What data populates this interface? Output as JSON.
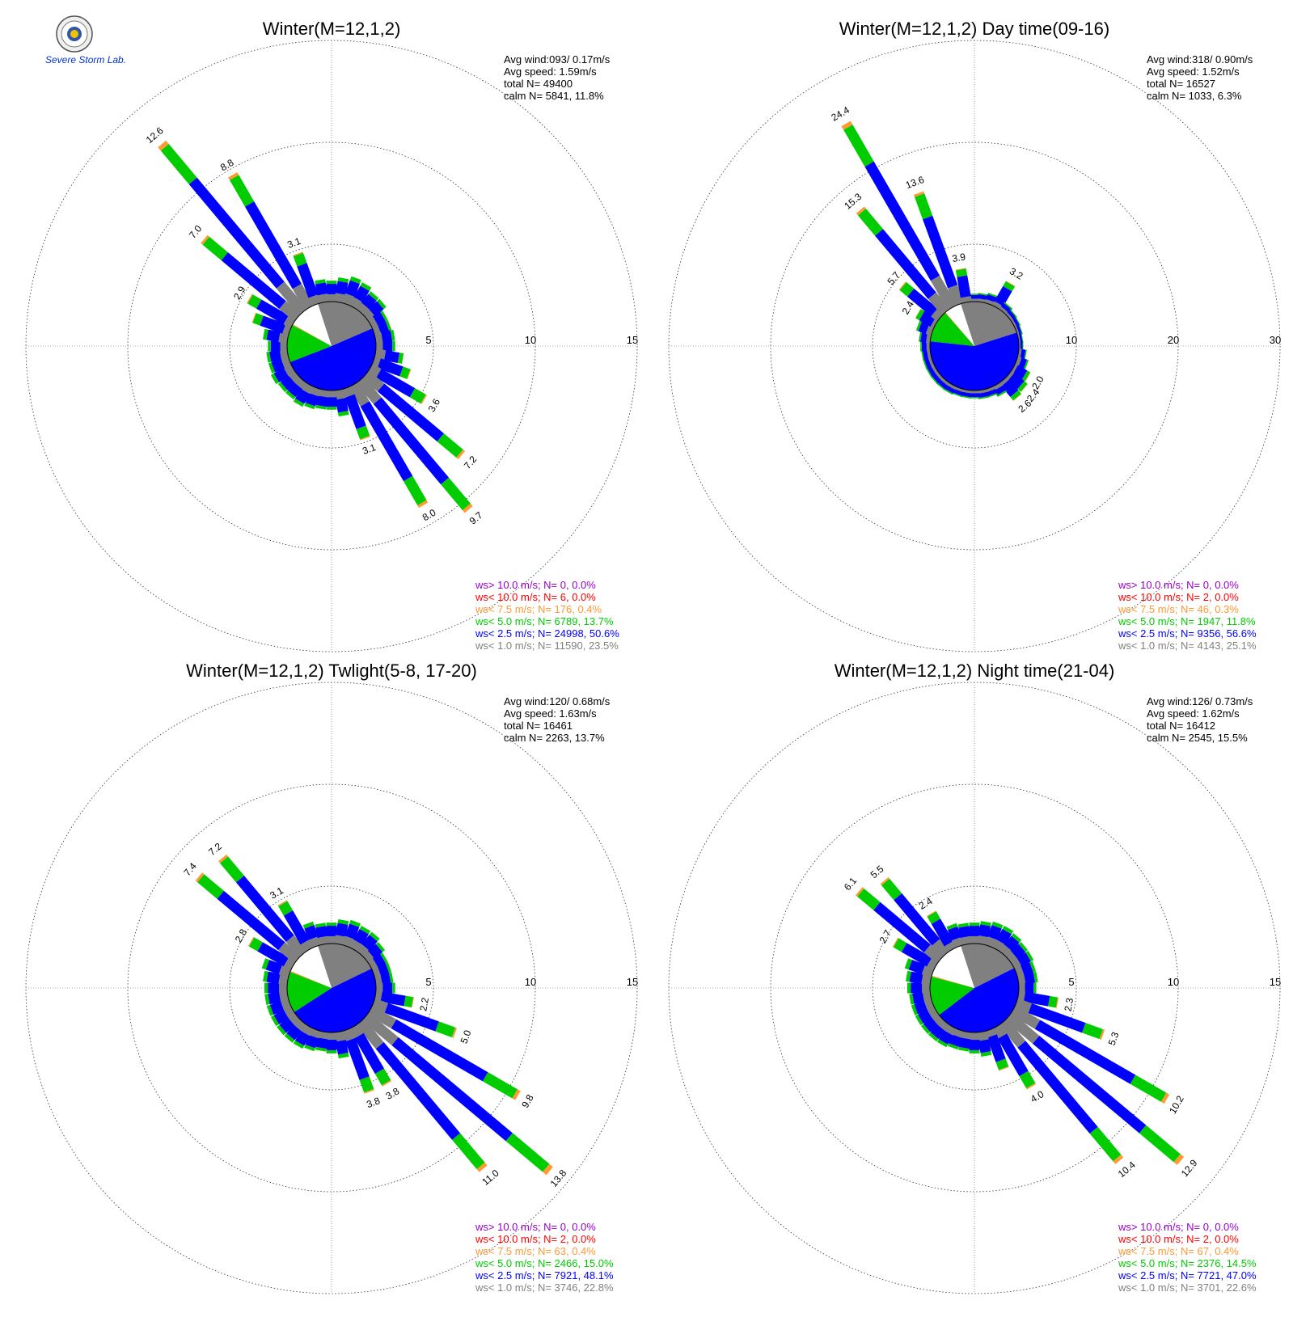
{
  "colors": {
    "ws_gt_10": "#9900cc",
    "ws_lt_10": "#ff0000",
    "ws_lt_7_5": "#ff9933",
    "ws_lt_5": "#00cc00",
    "ws_lt_2_5": "#0000ff",
    "ws_lt_1": "#808080"
  },
  "logo": {
    "icon": "seal-icon",
    "text": "Severe Storm Lab."
  },
  "chart_data": [
    {
      "type": "windrose",
      "title": "Winter(M=12,1,2)",
      "stats": {
        "avg_wind": "Avg wind:093/ 0.17m/s",
        "avg_speed": "Avg speed: 1.59m/s",
        "total": "total N=      49400",
        "calm": "calm N=   5841,  11.8%"
      },
      "rmax": 15,
      "ticks": [
        "5",
        "10",
        "15"
      ],
      "tick_values": [
        5,
        10,
        15
      ],
      "directions_deg": [
        0,
        10,
        20,
        30,
        40,
        50,
        60,
        70,
        80,
        90,
        100,
        110,
        120,
        130,
        140,
        150,
        160,
        170,
        180,
        190,
        200,
        210,
        220,
        230,
        240,
        250,
        260,
        270,
        280,
        290,
        300,
        310,
        320,
        330,
        340,
        350
      ],
      "totals": [
        1.2,
        1.4,
        1.6,
        1.5,
        1.3,
        1.3,
        1.0,
        1.0,
        1.1,
        1.1,
        1.6,
        2.2,
        3.6,
        7.2,
        9.7,
        8.0,
        3.1,
        1.5,
        1.1,
        1.1,
        1.2,
        1.3,
        1.2,
        1.2,
        1.3,
        1.2,
        1.2,
        1.1,
        1.4,
        2.2,
        2.9,
        7.0,
        12.6,
        8.8,
        3.1,
        1.3
      ],
      "labels": [
        [
          120,
          "3.6"
        ],
        [
          130,
          "7.2"
        ],
        [
          140,
          "9.7"
        ],
        [
          150,
          "8.0"
        ],
        [
          160,
          "3.1"
        ],
        [
          300,
          "2.9"
        ],
        [
          310,
          "7.0"
        ],
        [
          320,
          "12.6"
        ],
        [
          330,
          "8.8"
        ],
        [
          340,
          "3.1"
        ]
      ],
      "core_fractions": [
        0.235,
        0.506,
        0.137,
        0.004,
        0.0,
        0.0
      ],
      "legend": [
        "ws> 10.0 m/s; N=     0,  0.0%",
        "ws< 10.0 m/s; N=     6,  0.0%",
        "ws<  7.5 m/s; N=   176,  0.4%",
        "ws<  5.0 m/s; N=  6789, 13.7%",
        "ws<  2.5 m/s; N= 24998, 50.6%",
        "ws<  1.0 m/s; N= 11590, 23.5%"
      ]
    },
    {
      "type": "windrose",
      "title": "Winter(M=12,1,2) Day time(09-16)",
      "stats": {
        "avg_wind": "Avg wind:318/ 0.90m/s",
        "avg_speed": "Avg speed: 1.52m/s",
        "total": "total N=      16527",
        "calm": "calm N=   1033,   6.3%"
      },
      "rmax": 30,
      "ticks": [
        "10",
        "20",
        "30"
      ],
      "tick_values": [
        10,
        20,
        30
      ],
      "directions_deg": [
        0,
        10,
        20,
        30,
        40,
        50,
        60,
        70,
        80,
        90,
        100,
        110,
        120,
        130,
        140,
        150,
        160,
        170,
        180,
        190,
        200,
        210,
        220,
        230,
        240,
        250,
        260,
        270,
        280,
        290,
        300,
        310,
        320,
        330,
        340,
        350
      ],
      "totals": [
        0.9,
        1.0,
        1.2,
        3.2,
        1.0,
        0.8,
        0.7,
        0.6,
        0.5,
        0.5,
        0.9,
        1.3,
        2.0,
        2.4,
        2.6,
        1.3,
        1.0,
        1.0,
        0.9,
        0.9,
        0.9,
        1.0,
        1.0,
        1.0,
        1.0,
        1.0,
        1.0,
        1.1,
        1.3,
        1.8,
        2.4,
        5.7,
        15.3,
        24.4,
        13.6,
        3.9
      ],
      "labels": [
        [
          30,
          "3.2"
        ],
        [
          120,
          "2.0"
        ],
        [
          130,
          "2.4"
        ],
        [
          140,
          "2.6"
        ],
        [
          300,
          "2.4"
        ],
        [
          310,
          "5.7"
        ],
        [
          320,
          "15.3"
        ],
        [
          330,
          "24.4"
        ],
        [
          340,
          "13.6"
        ],
        [
          350,
          "3.9"
        ]
      ],
      "core_fractions": [
        0.251,
        0.566,
        0.118,
        0.003,
        0.0,
        0.0
      ],
      "legend": [
        "ws> 10.0 m/s; N=     0,  0.0%",
        "ws< 10.0 m/s; N=     2,  0.0%",
        "ws<  7.5 m/s; N=    46,  0.3%",
        "ws<  5.0 m/s; N=  1947, 11.8%",
        "ws<  2.5 m/s; N=  9356, 56.6%",
        "ws<  1.0 m/s; N=  4143, 25.1%"
      ]
    },
    {
      "type": "windrose",
      "title": "Winter(M=12,1,2) Twlight(5-8, 17-20)",
      "stats": {
        "avg_wind": "Avg wind:120/ 0.68m/s",
        "avg_speed": "Avg speed: 1.63m/s",
        "total": "total N=      16461",
        "calm": "calm N=   2263,  13.7%"
      },
      "rmax": 15,
      "ticks": [
        "5",
        "10",
        "15"
      ],
      "tick_values": [
        5,
        10,
        15
      ],
      "directions_deg": [
        0,
        10,
        20,
        30,
        40,
        50,
        60,
        70,
        80,
        90,
        100,
        110,
        120,
        130,
        140,
        150,
        160,
        170,
        180,
        190,
        200,
        210,
        220,
        230,
        240,
        250,
        260,
        270,
        280,
        290,
        300,
        310,
        320,
        330,
        340,
        350
      ],
      "totals": [
        1.2,
        1.4,
        1.5,
        1.4,
        1.4,
        1.2,
        1.0,
        1.0,
        1.0,
        1.1,
        2.2,
        5.0,
        9.8,
        13.8,
        11.0,
        3.8,
        3.8,
        1.5,
        1.2,
        1.1,
        1.2,
        1.3,
        1.3,
        1.3,
        1.3,
        1.3,
        1.3,
        1.3,
        1.4,
        1.6,
        2.8,
        7.4,
        7.2,
        3.1,
        1.4,
        1.2
      ],
      "labels": [
        [
          100,
          "2.2"
        ],
        [
          110,
          "5.0"
        ],
        [
          120,
          "9.8"
        ],
        [
          130,
          "13.8"
        ],
        [
          140,
          "11.0"
        ],
        [
          150,
          "3.8"
        ],
        [
          160,
          "3.8"
        ],
        [
          300,
          "2.8"
        ],
        [
          310,
          "7.4"
        ],
        [
          320,
          "7.2"
        ],
        [
          330,
          "3.1"
        ]
      ],
      "core_fractions": [
        0.228,
        0.481,
        0.15,
        0.004,
        0.0,
        0.0
      ],
      "legend": [
        "ws> 10.0 m/s; N=     0,  0.0%",
        "ws< 10.0 m/s; N=     2,  0.0%",
        "ws<  7.5 m/s; N=    63,  0.4%",
        "ws<  5.0 m/s; N=  2466, 15.0%",
        "ws<  2.5 m/s; N=  7921, 48.1%",
        "ws<  1.0 m/s; N=  3746, 22.8%"
      ]
    },
    {
      "type": "windrose",
      "title": "Winter(M=12,1,2) Night time(21-04)",
      "stats": {
        "avg_wind": "Avg wind:126/ 0.73m/s",
        "avg_speed": "Avg speed: 1.62m/s",
        "total": "total N=      16412",
        "calm": "calm N=   2545,  15.5%"
      },
      "rmax": 15,
      "ticks": [
        "5",
        "10",
        "15"
      ],
      "tick_values": [
        5,
        10,
        15
      ],
      "directions_deg": [
        0,
        10,
        20,
        30,
        40,
        50,
        60,
        70,
        80,
        90,
        100,
        110,
        120,
        130,
        140,
        150,
        160,
        170,
        180,
        190,
        200,
        210,
        220,
        230,
        240,
        250,
        260,
        270,
        280,
        290,
        300,
        310,
        320,
        330,
        340,
        350
      ],
      "totals": [
        1.2,
        1.3,
        1.4,
        1.4,
        1.3,
        1.2,
        1.2,
        1.1,
        1.1,
        1.0,
        2.3,
        5.3,
        10.2,
        12.9,
        10.4,
        4.0,
        2.4,
        1.4,
        1.2,
        1.1,
        1.1,
        1.2,
        1.2,
        1.2,
        1.2,
        1.2,
        1.2,
        1.3,
        1.4,
        1.6,
        2.7,
        6.1,
        5.5,
        2.4,
        1.3,
        1.2
      ],
      "labels": [
        [
          100,
          "2.3"
        ],
        [
          110,
          "5.3"
        ],
        [
          120,
          "10.2"
        ],
        [
          130,
          "12.9"
        ],
        [
          140,
          "10.4"
        ],
        [
          150,
          "4.0"
        ],
        [
          300,
          "2.7"
        ],
        [
          310,
          "6.1"
        ],
        [
          320,
          "5.5"
        ],
        [
          330,
          "2.4"
        ]
      ],
      "core_fractions": [
        0.226,
        0.47,
        0.145,
        0.004,
        0.0,
        0.0
      ],
      "legend": [
        "ws> 10.0 m/s; N=     0,  0.0%",
        "ws< 10.0 m/s; N=     2,  0.0%",
        "ws<  7.5 m/s; N=    67,  0.4%",
        "ws<  5.0 m/s; N=  2376, 14.5%",
        "ws<  2.5 m/s; N=  7721, 47.0%",
        "ws<  1.0 m/s; N=  3701, 22.6%"
      ]
    }
  ]
}
